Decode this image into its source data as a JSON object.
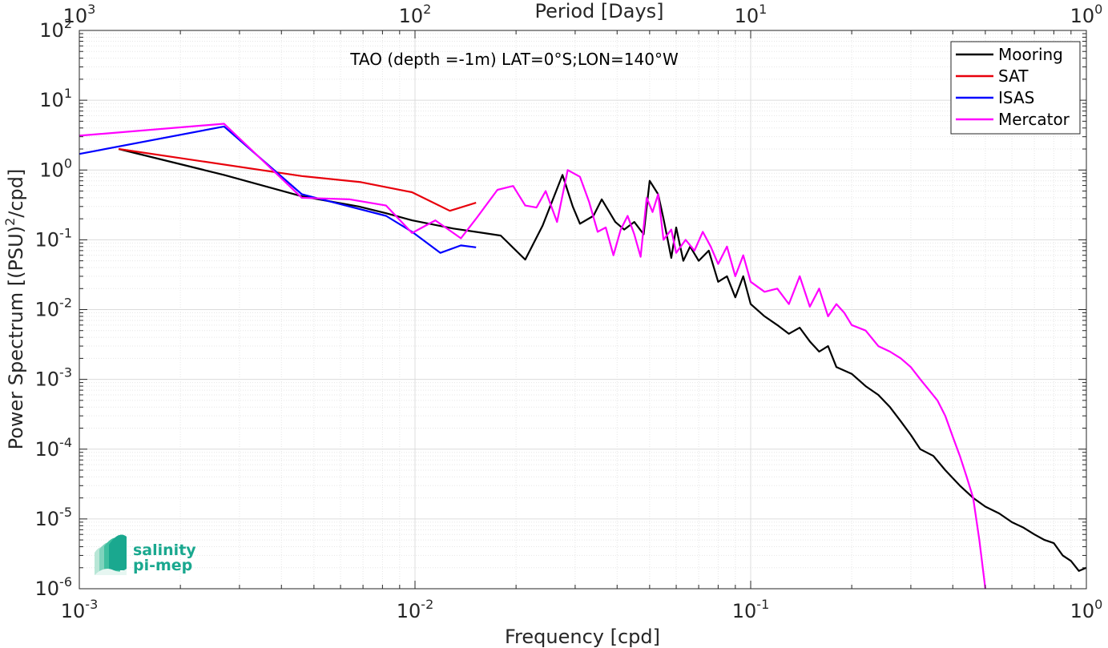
{
  "chart_data": {
    "type": "line",
    "xscale": "log",
    "yscale": "log",
    "xlabel": "Frequency [cpd]",
    "ylabel_main": "Power Spectrum [(PSU)",
    "ylabel_sup": "2",
    "ylabel_tail": "/cpd]",
    "top_axis_label": "Period [Days]",
    "annotation": "TAO (depth =-1m) LAT=0°S;LON=140°W",
    "xlim": [
      0.001,
      1
    ],
    "ylim": [
      1e-06,
      100
    ],
    "grid": true,
    "legend_position": "top-right",
    "x_ticks": [
      {
        "base": "10",
        "exp": "-3"
      },
      {
        "base": "10",
        "exp": "-2"
      },
      {
        "base": "10",
        "exp": "-1"
      },
      {
        "base": "10",
        "exp": "0"
      }
    ],
    "y_ticks": [
      {
        "base": "10",
        "exp": "-6"
      },
      {
        "base": "10",
        "exp": "-5"
      },
      {
        "base": "10",
        "exp": "-4"
      },
      {
        "base": "10",
        "exp": "-3"
      },
      {
        "base": "10",
        "exp": "-2"
      },
      {
        "base": "10",
        "exp": "-1"
      },
      {
        "base": "10",
        "exp": "0"
      },
      {
        "base": "10",
        "exp": "1"
      },
      {
        "base": "10",
        "exp": "2"
      }
    ],
    "top_ticks": [
      {
        "base": "10",
        "exp": "3"
      },
      {
        "base": "10",
        "exp": "2"
      },
      {
        "base": "10",
        "exp": "1"
      },
      {
        "base": "10",
        "exp": "0"
      }
    ],
    "series": [
      {
        "name": "Mooring",
        "color": "#000000",
        "points": [
          [
            0.00131,
            2.0
          ],
          [
            0.0027,
            0.85
          ],
          [
            0.0046,
            0.42
          ],
          [
            0.0068,
            0.3
          ],
          [
            0.0082,
            0.24
          ],
          [
            0.0098,
            0.19
          ],
          [
            0.013,
            0.145
          ],
          [
            0.016,
            0.125
          ],
          [
            0.018,
            0.115
          ],
          [
            0.0213,
            0.052
          ],
          [
            0.024,
            0.16
          ],
          [
            0.0275,
            0.85
          ],
          [
            0.0295,
            0.3
          ],
          [
            0.031,
            0.17
          ],
          [
            0.034,
            0.22
          ],
          [
            0.036,
            0.38
          ],
          [
            0.0395,
            0.18
          ],
          [
            0.042,
            0.14
          ],
          [
            0.045,
            0.18
          ],
          [
            0.048,
            0.12
          ],
          [
            0.05,
            0.7
          ],
          [
            0.053,
            0.45
          ],
          [
            0.055,
            0.2
          ],
          [
            0.058,
            0.055
          ],
          [
            0.06,
            0.15
          ],
          [
            0.063,
            0.05
          ],
          [
            0.066,
            0.08
          ],
          [
            0.07,
            0.05
          ],
          [
            0.075,
            0.07
          ],
          [
            0.08,
            0.025
          ],
          [
            0.085,
            0.03
          ],
          [
            0.09,
            0.015
          ],
          [
            0.095,
            0.03
          ],
          [
            0.1,
            0.012
          ],
          [
            0.11,
            0.008
          ],
          [
            0.12,
            0.006
          ],
          [
            0.13,
            0.0045
          ],
          [
            0.14,
            0.0055
          ],
          [
            0.15,
            0.0035
          ],
          [
            0.16,
            0.0025
          ],
          [
            0.17,
            0.003
          ],
          [
            0.18,
            0.0015
          ],
          [
            0.2,
            0.0012
          ],
          [
            0.22,
            0.0008
          ],
          [
            0.24,
            0.0006
          ],
          [
            0.26,
            0.0004
          ],
          [
            0.28,
            0.00025
          ],
          [
            0.3,
            0.00016
          ],
          [
            0.32,
            0.0001
          ],
          [
            0.35,
            8e-05
          ],
          [
            0.38,
            5e-05
          ],
          [
            0.42,
            3e-05
          ],
          [
            0.46,
            2e-05
          ],
          [
            0.5,
            1.5e-05
          ],
          [
            0.55,
            1.2e-05
          ],
          [
            0.6,
            9e-06
          ],
          [
            0.65,
            7.5e-06
          ],
          [
            0.7,
            6e-06
          ],
          [
            0.75,
            5e-06
          ],
          [
            0.8,
            4.5e-06
          ],
          [
            0.85,
            3e-06
          ],
          [
            0.9,
            2.5e-06
          ],
          [
            0.95,
            1.8e-06
          ],
          [
            1.0,
            2e-06
          ]
        ]
      },
      {
        "name": "SAT",
        "color": "#e8000b",
        "points": [
          [
            0.00131,
            2.0
          ],
          [
            0.0046,
            0.82
          ],
          [
            0.0069,
            0.67
          ],
          [
            0.0098,
            0.48
          ],
          [
            0.0127,
            0.26
          ],
          [
            0.0152,
            0.34
          ]
        ]
      },
      {
        "name": "ISAS",
        "color": "#0000ff",
        "points": [
          [
            0.001,
            1.7
          ],
          [
            0.0027,
            4.2
          ],
          [
            0.0046,
            0.45
          ],
          [
            0.0082,
            0.22
          ],
          [
            0.0098,
            0.13
          ],
          [
            0.0119,
            0.065
          ],
          [
            0.0137,
            0.083
          ],
          [
            0.0152,
            0.078
          ]
        ]
      },
      {
        "name": "Mercator",
        "color": "#ff00ff",
        "points": [
          [
            0.001,
            3.1
          ],
          [
            0.0027,
            4.6
          ],
          [
            0.0046,
            0.4
          ],
          [
            0.0064,
            0.38
          ],
          [
            0.0082,
            0.31
          ],
          [
            0.0098,
            0.125
          ],
          [
            0.0115,
            0.19
          ],
          [
            0.0137,
            0.105
          ],
          [
            0.0152,
            0.2
          ],
          [
            0.0176,
            0.52
          ],
          [
            0.0196,
            0.59
          ],
          [
            0.0213,
            0.31
          ],
          [
            0.023,
            0.29
          ],
          [
            0.0245,
            0.5
          ],
          [
            0.0265,
            0.18
          ],
          [
            0.0285,
            1.0
          ],
          [
            0.031,
            0.8
          ],
          [
            0.033,
            0.35
          ],
          [
            0.035,
            0.13
          ],
          [
            0.037,
            0.15
          ],
          [
            0.039,
            0.06
          ],
          [
            0.041,
            0.14
          ],
          [
            0.043,
            0.22
          ],
          [
            0.045,
            0.12
          ],
          [
            0.047,
            0.057
          ],
          [
            0.049,
            0.4
          ],
          [
            0.051,
            0.25
          ],
          [
            0.053,
            0.45
          ],
          [
            0.055,
            0.1
          ],
          [
            0.058,
            0.14
          ],
          [
            0.06,
            0.065
          ],
          [
            0.064,
            0.1
          ],
          [
            0.068,
            0.07
          ],
          [
            0.072,
            0.13
          ],
          [
            0.076,
            0.08
          ],
          [
            0.08,
            0.045
          ],
          [
            0.085,
            0.08
          ],
          [
            0.09,
            0.03
          ],
          [
            0.095,
            0.06
          ],
          [
            0.1,
            0.025
          ],
          [
            0.11,
            0.018
          ],
          [
            0.12,
            0.02
          ],
          [
            0.13,
            0.012
          ],
          [
            0.14,
            0.03
          ],
          [
            0.15,
            0.011
          ],
          [
            0.16,
            0.02
          ],
          [
            0.17,
            0.008
          ],
          [
            0.18,
            0.012
          ],
          [
            0.19,
            0.009
          ],
          [
            0.2,
            0.006
          ],
          [
            0.22,
            0.005
          ],
          [
            0.24,
            0.003
          ],
          [
            0.26,
            0.0025
          ],
          [
            0.28,
            0.002
          ],
          [
            0.3,
            0.0015
          ],
          [
            0.32,
            0.001
          ],
          [
            0.34,
            0.0007
          ],
          [
            0.36,
            0.0005
          ],
          [
            0.38,
            0.0003
          ],
          [
            0.4,
            0.00015
          ],
          [
            0.42,
            8e-05
          ],
          [
            0.44,
            4e-05
          ],
          [
            0.46,
            2e-05
          ],
          [
            0.48,
            5e-06
          ],
          [
            0.5,
            1e-06
          ]
        ]
      }
    ]
  },
  "logo": {
    "line1": "salinity",
    "line2": "pi-mep"
  }
}
